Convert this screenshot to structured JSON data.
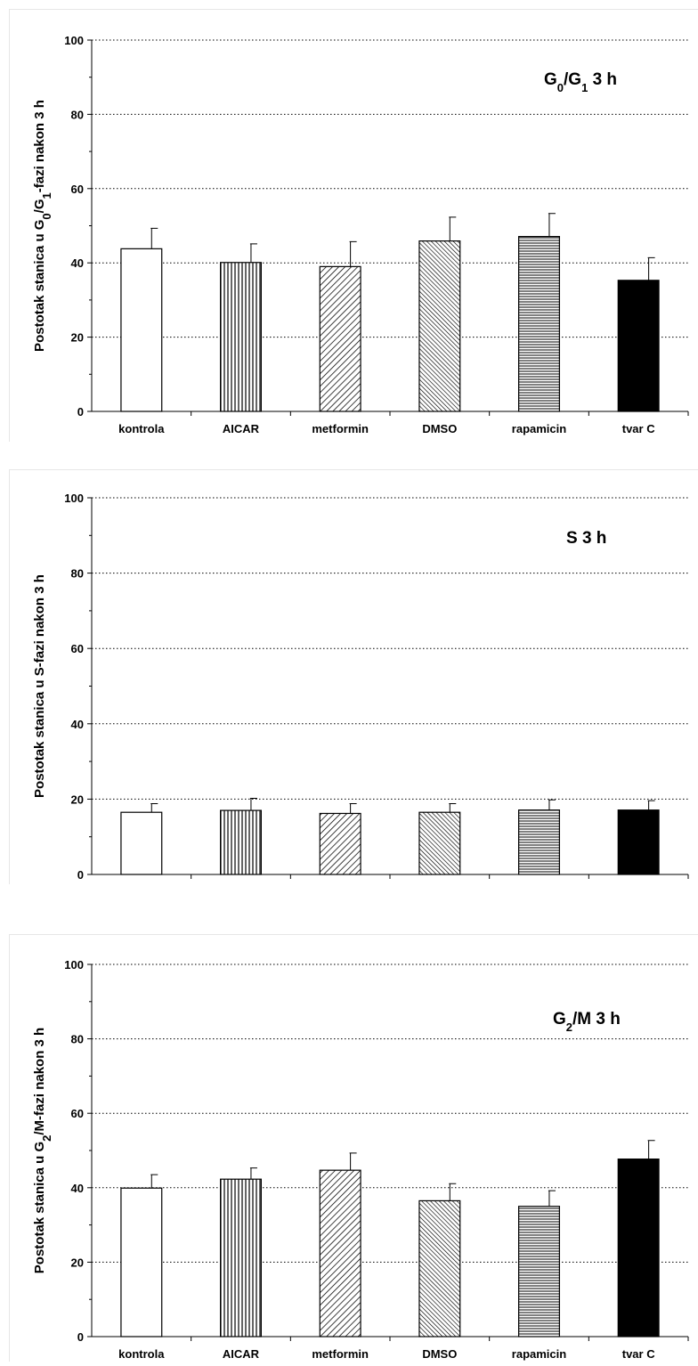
{
  "chart_data": [
    {
      "type": "bar",
      "title_parts": [
        {
          "t": "G"
        },
        {
          "t": "0",
          "sub": true
        },
        {
          "t": "/G"
        },
        {
          "t": "1",
          "sub": true
        },
        {
          "t": " 3 h"
        }
      ],
      "ylabel_parts": [
        {
          "t": "Postotak stanica u G"
        },
        {
          "t": "0",
          "sub": true
        },
        {
          "t": "/G"
        },
        {
          "t": "1",
          "sub": true
        },
        {
          "t": "-fazi nakon 3 h"
        }
      ],
      "categories": [
        "kontrola",
        "AICAR",
        "metformin",
        "DMSO",
        "rapamicin",
        "tvar C"
      ],
      "values": [
        43.8,
        40.1,
        39.0,
        45.9,
        47.1,
        35.3
      ],
      "errors": [
        5.5,
        5.0,
        6.7,
        6.4,
        6.2,
        6.1
      ],
      "yticks": [
        "0",
        "20",
        "40",
        "60",
        "80",
        "100"
      ],
      "ylim": [
        0,
        100
      ],
      "grid": true,
      "patterns": [
        "white",
        "vertical",
        "diagonal",
        "diagonal-dense",
        "horizontal",
        "black"
      ]
    },
    {
      "type": "bar",
      "title_parts": [
        {
          "t": "S 3 h"
        }
      ],
      "ylabel_parts": [
        {
          "t": "Postotak stanica u  S-fazi nakon 3 h"
        }
      ],
      "categories": [
        "kontrola",
        "AICAR",
        "metformin",
        "DMSO",
        "rapamicin",
        "tvar C"
      ],
      "values": [
        16.5,
        17.0,
        16.2,
        16.5,
        17.1,
        17.1
      ],
      "errors": [
        2.3,
        3.2,
        2.6,
        2.3,
        2.7,
        2.5
      ],
      "yticks": [
        "0",
        "20",
        "40",
        "60",
        "80",
        "100"
      ],
      "ylim": [
        0,
        100
      ],
      "grid": true,
      "patterns": [
        "white",
        "vertical",
        "diagonal",
        "diagonal-dense",
        "horizontal",
        "black"
      ]
    },
    {
      "type": "bar",
      "title_parts": [
        {
          "t": "G"
        },
        {
          "t": "2",
          "sub": true
        },
        {
          "t": "/M 3 h"
        }
      ],
      "ylabel_parts": [
        {
          "t": "Postotak stanica u G"
        },
        {
          "t": "2",
          "sub": true
        },
        {
          "t": "/M-fazi nakon 3 h"
        }
      ],
      "categories": [
        "kontrola",
        "AICAR",
        "metformin",
        "DMSO",
        "rapamicin",
        "tvar C"
      ],
      "values": [
        39.9,
        42.3,
        44.7,
        36.5,
        35.0,
        47.7
      ],
      "errors": [
        3.6,
        3.0,
        4.6,
        4.6,
        4.2,
        5.0
      ],
      "yticks": [
        "0",
        "20",
        "40",
        "60",
        "80",
        "100"
      ],
      "ylim": [
        0,
        100
      ],
      "grid": true,
      "patterns": [
        "white",
        "vertical",
        "diagonal",
        "diagonal-dense",
        "horizontal",
        "black"
      ]
    }
  ]
}
